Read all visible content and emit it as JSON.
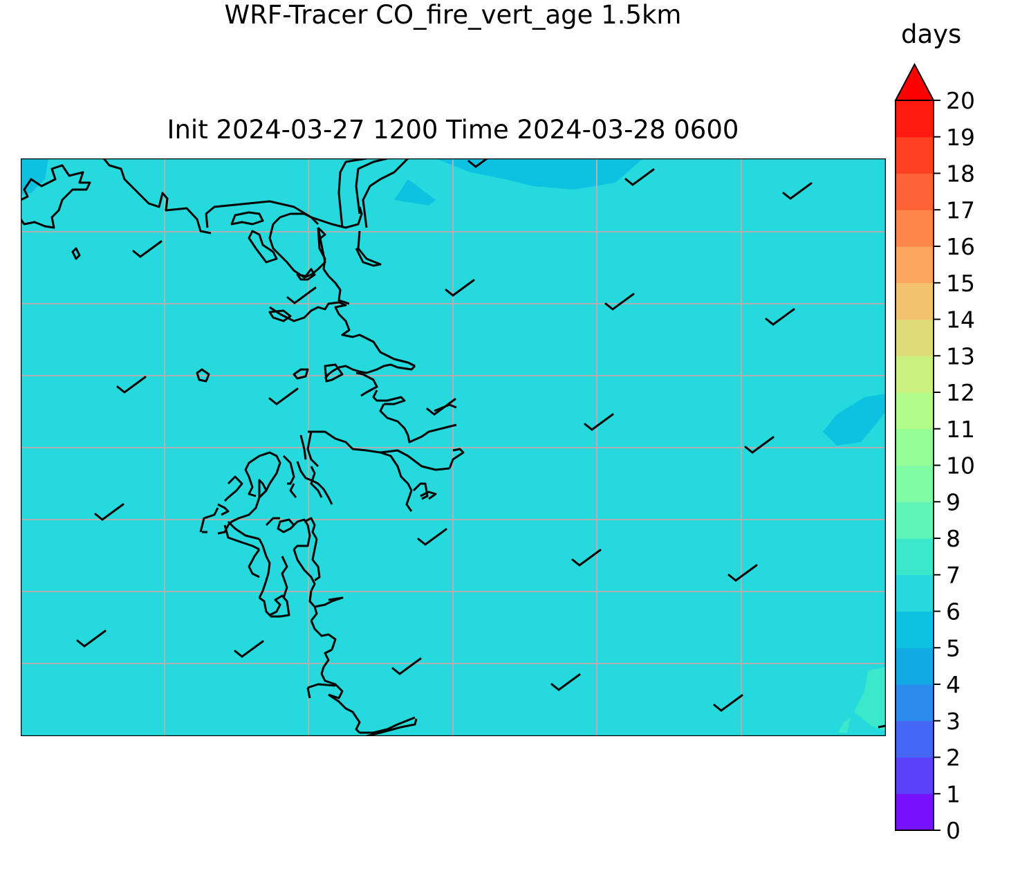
{
  "title_line1": "WRF-Tracer CO_fire_vert_age 1.5km",
  "title_line2": "Init 2024-03-27 1200 Time 2024-03-28 0600",
  "colorbar": {
    "unit_label": "days",
    "ticks": [
      "0",
      "1",
      "2",
      "3",
      "4",
      "5",
      "6",
      "7",
      "8",
      "9",
      "10",
      "11",
      "12",
      "13",
      "14",
      "15",
      "16",
      "17",
      "18",
      "19",
      "20"
    ],
    "colors": [
      "#7710fb",
      "#5c3ff8",
      "#4366f4",
      "#2b8cee",
      "#12aae5",
      "#0dc2e1",
      "#26d9dc",
      "#3ce8cc",
      "#5ff4b8",
      "#80fca6",
      "#96fe97",
      "#b2fb8b",
      "#cbf07d",
      "#dfdc78",
      "#f2c26f",
      "#fba55e",
      "#ff8649",
      "#ff6236",
      "#ff3f22",
      "#ff190f"
    ],
    "extend_color": "#ff0000"
  },
  "map": {
    "background_color": "#26d9dc",
    "shaded_patch_color": "#0dc2e1",
    "light_patch_color": "#3ce8cc",
    "gridlines": true,
    "wind_barbs": "light winds, half-barb style, blowing from southwest"
  }
}
